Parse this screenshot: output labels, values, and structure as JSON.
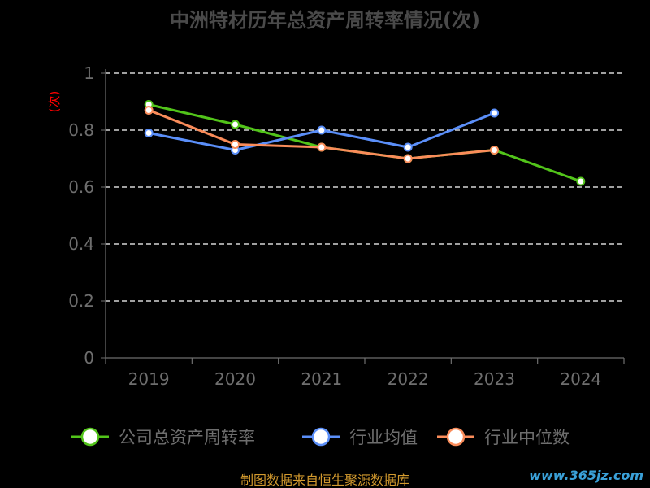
{
  "chart_data": {
    "type": "line",
    "title": "中洲特材历年总资产周转率情况(次)",
    "ylabel": "(次)",
    "categories": [
      "2019",
      "2020",
      "2021",
      "2022",
      "2023",
      "2024"
    ],
    "ylim": [
      0,
      1
    ],
    "yticks": [
      0,
      0.2,
      0.4,
      0.6,
      0.8,
      1
    ],
    "ytick_labels": [
      "0",
      "0.2",
      "0.4",
      "0.6",
      "0.8",
      "1"
    ],
    "grid": true,
    "legend_position": "bottom",
    "series": [
      {
        "name": "公司总资产周转率",
        "color": "#52c41a",
        "values": [
          0.89,
          0.82,
          0.74,
          0.7,
          0.73,
          0.62
        ]
      },
      {
        "name": "行业均值",
        "color": "#5b8ff9",
        "values": [
          0.79,
          0.73,
          0.8,
          0.74,
          0.86,
          null
        ]
      },
      {
        "name": "行业中位数",
        "color": "#fa8c5a",
        "values": [
          0.87,
          0.75,
          0.74,
          0.7,
          0.73,
          null
        ]
      }
    ]
  },
  "footer": {
    "source": "制图数据来自恒生聚源数据库",
    "watermark": "www.365jz.com"
  }
}
